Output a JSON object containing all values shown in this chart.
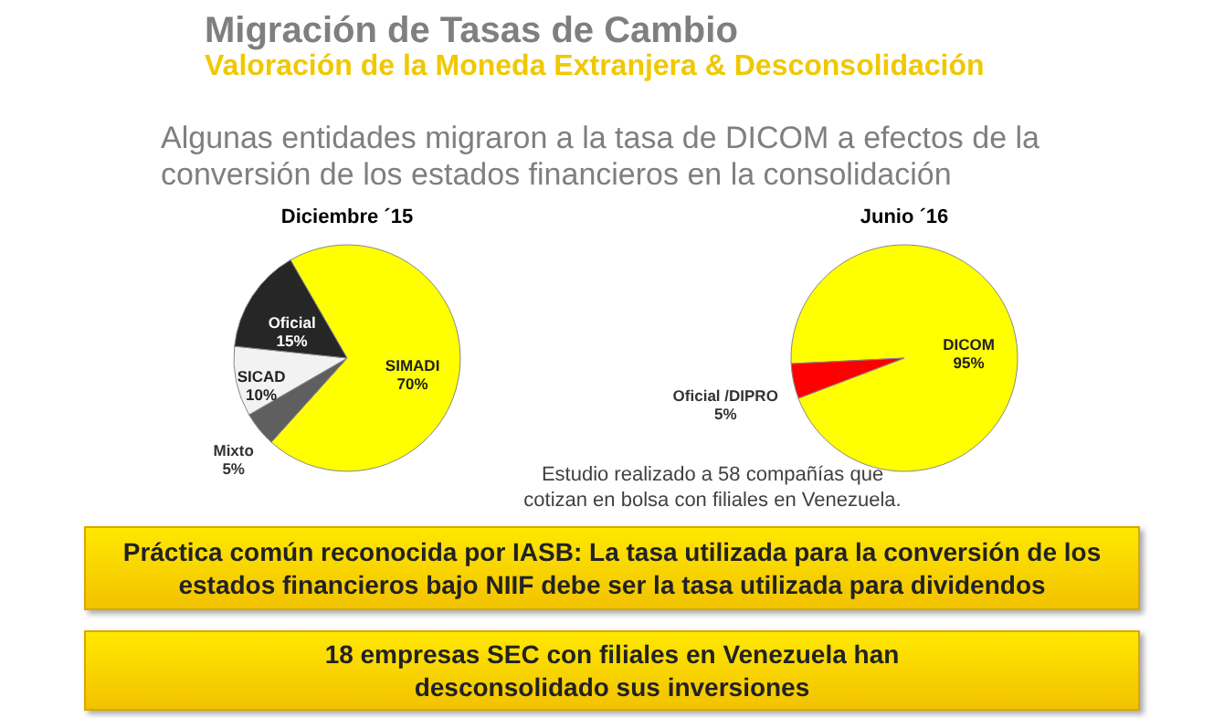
{
  "chart_data": [
    {
      "type": "other",
      "title": "Migración de Tasas de Cambio",
      "subtitle": "Valoración de la Moneda Extranjera & Desconsolidación",
      "annotations": [
        "Algunas entidades migraron a la tasa de DICOM a efectos de la conversión de los estados financieros en la consolidación",
        "Estudio realizado a 58 compañías que cotizan en bolsa con filiales en Venezuela.",
        "Práctica común reconocida por IASB: La tasa utilizada para la conversión de los estados financieros bajo NIIF debe ser la tasa utilizada para dividendos",
        "18 empresas SEC con filiales en Venezuela han desconsolidado sus inversiones"
      ]
    },
    {
      "type": "pie",
      "title": "Diciembre ´15",
      "categories": [
        "SIMADI",
        "Mixto",
        "SICAD",
        "Oficial"
      ],
      "values": [
        70,
        5,
        10,
        15
      ],
      "value_labels": [
        "70%",
        "5%",
        "10%",
        "15%"
      ],
      "colors": [
        "#ffff00",
        "#5f5f5f",
        "#f2f2f2",
        "#262626"
      ],
      "legend": false
    },
    {
      "type": "pie",
      "title": "Junio ´16",
      "categories": [
        "DICOM",
        "Oficial /DIPRO"
      ],
      "values": [
        95,
        5
      ],
      "value_labels": [
        "95%",
        "5%"
      ],
      "colors": [
        "#ffff00",
        "#ff0000"
      ],
      "legend": false
    }
  ]
}
